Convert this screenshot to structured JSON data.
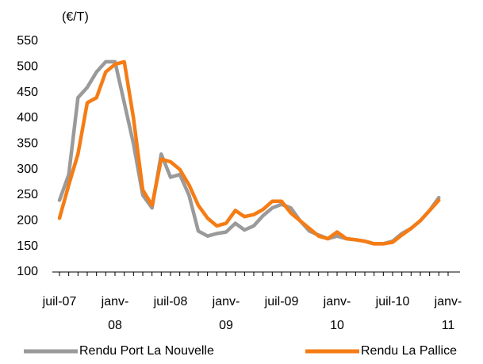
{
  "chart_data": {
    "type": "line",
    "y_label": "(€/T)",
    "categories": [
      "juil-07",
      null,
      null,
      null,
      null,
      null,
      "janv-\n08",
      null,
      null,
      null,
      null,
      null,
      "juil-08",
      null,
      null,
      null,
      null,
      null,
      "janv-\n09",
      null,
      null,
      null,
      null,
      null,
      "juil-09",
      null,
      null,
      null,
      null,
      null,
      "janv-\n10",
      null,
      null,
      null,
      null,
      null,
      "juil-10",
      null,
      null,
      null,
      null,
      null,
      "janv-\n11"
    ],
    "series": [
      {
        "name": "Rendu Port La Nouvelle",
        "color": "#9a9a9a",
        "values": [
          240,
          290,
          440,
          460,
          490,
          510,
          510,
          430,
          350,
          250,
          225,
          330,
          285,
          290,
          250,
          180,
          170,
          175,
          178,
          195,
          182,
          190,
          210,
          225,
          232,
          225,
          200,
          180,
          172,
          165,
          170,
          165,
          163,
          160,
          155,
          155,
          160,
          175,
          185,
          200,
          220,
          245,
          null
        ]
      },
      {
        "name": "Rendu La Pallice",
        "color": "#f57c14",
        "values": [
          205,
          270,
          330,
          430,
          440,
          490,
          505,
          510,
          400,
          260,
          230,
          320,
          315,
          300,
          270,
          230,
          205,
          190,
          195,
          220,
          208,
          212,
          222,
          238,
          238,
          215,
          200,
          185,
          170,
          165,
          178,
          165,
          163,
          160,
          155,
          155,
          158,
          172,
          185,
          200,
          220,
          240,
          null
        ]
      }
    ],
    "ylim": [
      100,
      550
    ],
    "yticks": [
      100,
      150,
      200,
      250,
      300,
      350,
      400,
      450,
      500,
      550
    ],
    "legend": "bottom"
  }
}
